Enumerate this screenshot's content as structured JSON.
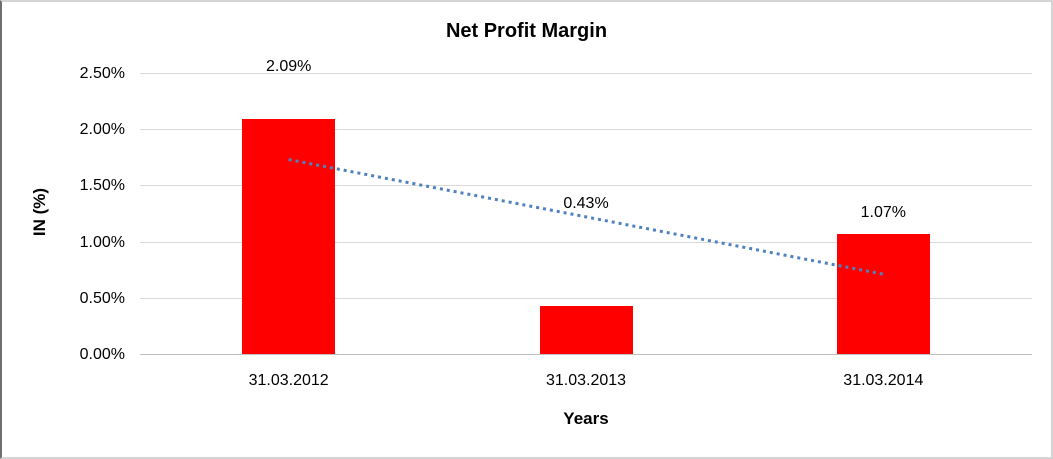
{
  "chart_data": {
    "type": "bar",
    "title": "Net Profit Margin",
    "xlabel": "Years",
    "ylabel": "IN (%)",
    "categories": [
      "31.03.2012",
      "31.03.2013",
      "31.03.2014"
    ],
    "values": [
      2.09,
      0.43,
      1.07
    ],
    "data_labels": [
      "2.09%",
      "0.43%",
      "1.07%"
    ],
    "ylim": [
      0,
      2.5
    ],
    "ytick_values": [
      0,
      0.5,
      1.0,
      1.5,
      2.0,
      2.5
    ],
    "ytick_labels": [
      "0.00%",
      "0.50%",
      "1.00%",
      "1.50%",
      "2.00%",
      "2.50%"
    ],
    "grid": true,
    "legend": "none",
    "bar_color": "#ff0000",
    "gridline_color": "#d9d9d9",
    "trendline": {
      "type": "linear",
      "style": "dotted",
      "color": "#4f81bd",
      "start_value": 1.73,
      "end_value": 0.71
    }
  }
}
